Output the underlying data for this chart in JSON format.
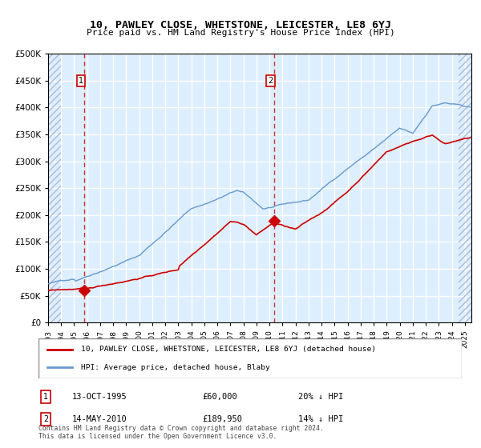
{
  "title": "10, PAWLEY CLOSE, WHETSTONE, LEICESTER, LE8 6YJ",
  "subtitle": "Price paid vs. HM Land Registry's House Price Index (HPI)",
  "legend_line1": "10, PAWLEY CLOSE, WHETSTONE, LEICESTER, LE8 6YJ (detached house)",
  "legend_line2": "HPI: Average price, detached house, Blaby",
  "footnote": "Contains HM Land Registry data © Crown copyright and database right 2024.\nThis data is licensed under the Open Government Licence v3.0.",
  "sale1_date": "13-OCT-1995",
  "sale1_price": "£60,000",
  "sale1_hpi": "20% ↓ HPI",
  "sale2_date": "14-MAY-2010",
  "sale2_price": "£189,950",
  "sale2_hpi": "14% ↓ HPI",
  "red_line_color": "#cc0000",
  "blue_line_color": "#6699cc",
  "marker_color": "#cc0000",
  "vline_color": "#cc0000",
  "bg_color": "#ddeeff",
  "hatch_color": "#aabbcc",
  "grid_color": "#ffffff",
  "ylim": [
    0,
    500000
  ],
  "yticks": [
    0,
    50000,
    100000,
    150000,
    200000,
    250000,
    300000,
    350000,
    400000,
    450000,
    500000
  ],
  "xlim_start": 1993.0,
  "xlim_end": 2025.5
}
